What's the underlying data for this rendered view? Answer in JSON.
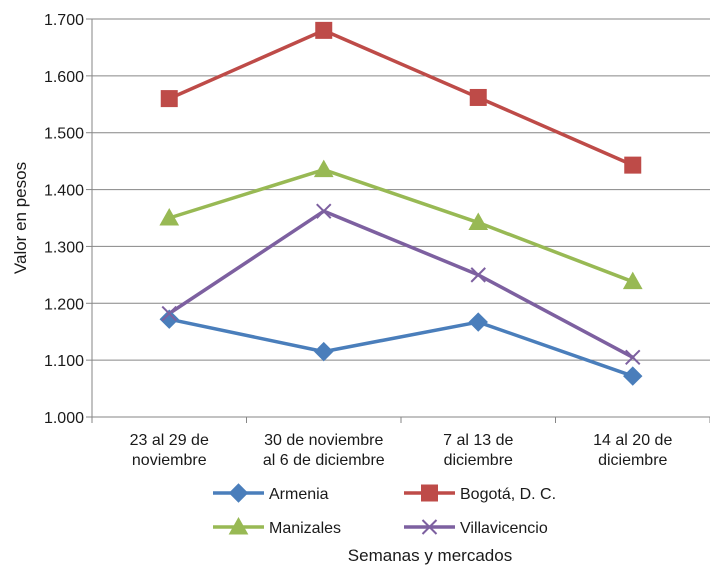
{
  "chart_data": {
    "type": "line",
    "title": "",
    "xlabel": "Semanas y mercados",
    "ylabel": "Valor en pesos",
    "ylim": [
      1000,
      1700
    ],
    "yticks": [
      1000,
      1100,
      1200,
      1300,
      1400,
      1500,
      1600,
      1700
    ],
    "ytick_labels": [
      "1.000",
      "1.100",
      "1.200",
      "1.300",
      "1.400",
      "1.500",
      "1.600",
      "1.700"
    ],
    "grid": "horizontal",
    "legend_position": "bottom",
    "categories": [
      [
        "23 al 29 de",
        "noviembre"
      ],
      [
        "30 de noviembre",
        "al 6 de diciembre"
      ],
      [
        "7 al 13 de",
        "diciembre"
      ],
      [
        "14 al 20 de",
        "diciembre"
      ]
    ],
    "series": [
      {
        "name": "Armenia",
        "values": [
          1172,
          1115,
          1167,
          1072
        ],
        "color": "#4a7ebb",
        "marker": "diamond"
      },
      {
        "name": "Bogotá, D. C.",
        "values": [
          1560,
          1680,
          1562,
          1443
        ],
        "color": "#be4b48",
        "marker": "square"
      },
      {
        "name": "Manizales",
        "values": [
          1350,
          1435,
          1342,
          1238
        ],
        "color": "#98b954",
        "marker": "triangle"
      },
      {
        "name": "Villavicencio",
        "values": [
          1182,
          1362,
          1250,
          1105
        ],
        "color": "#7d60a0",
        "marker": "x"
      }
    ]
  }
}
